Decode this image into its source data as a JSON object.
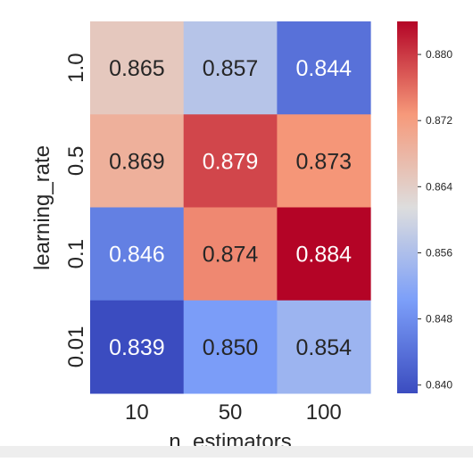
{
  "chart_data": {
    "type": "heatmap",
    "title": "",
    "xlabel": "n_estimators",
    "ylabel": "learning_rate",
    "x_categories": [
      "10",
      "50",
      "100"
    ],
    "y_categories": [
      "1.0",
      "0.5",
      "0.1",
      "0.01"
    ],
    "values": [
      [
        0.865,
        0.857,
        0.844
      ],
      [
        0.869,
        0.879,
        0.873
      ],
      [
        0.846,
        0.874,
        0.884
      ],
      [
        0.839,
        0.85,
        0.854
      ]
    ],
    "value_labels": [
      [
        "0.865",
        "0.857",
        "0.844"
      ],
      [
        "0.869",
        "0.879",
        "0.873"
      ],
      [
        "0.846",
        "0.874",
        "0.884"
      ],
      [
        "0.839",
        "0.850",
        "0.854"
      ]
    ],
    "colormap": "coolwarm",
    "colorbar": {
      "range": [
        0.839,
        0.884
      ],
      "ticks": [
        0.84,
        0.848,
        0.856,
        0.864,
        0.872,
        0.88
      ],
      "tick_labels": [
        "0.840",
        "0.848",
        "0.856",
        "0.864",
        "0.872",
        "0.880"
      ]
    },
    "grid": false,
    "legend": "colorbar-right"
  },
  "colors": {
    "low": "#3b4cc0",
    "mid": "#dddddd",
    "high": "#b40426",
    "dark_text": "#262626",
    "light_text": "#ffffff"
  }
}
